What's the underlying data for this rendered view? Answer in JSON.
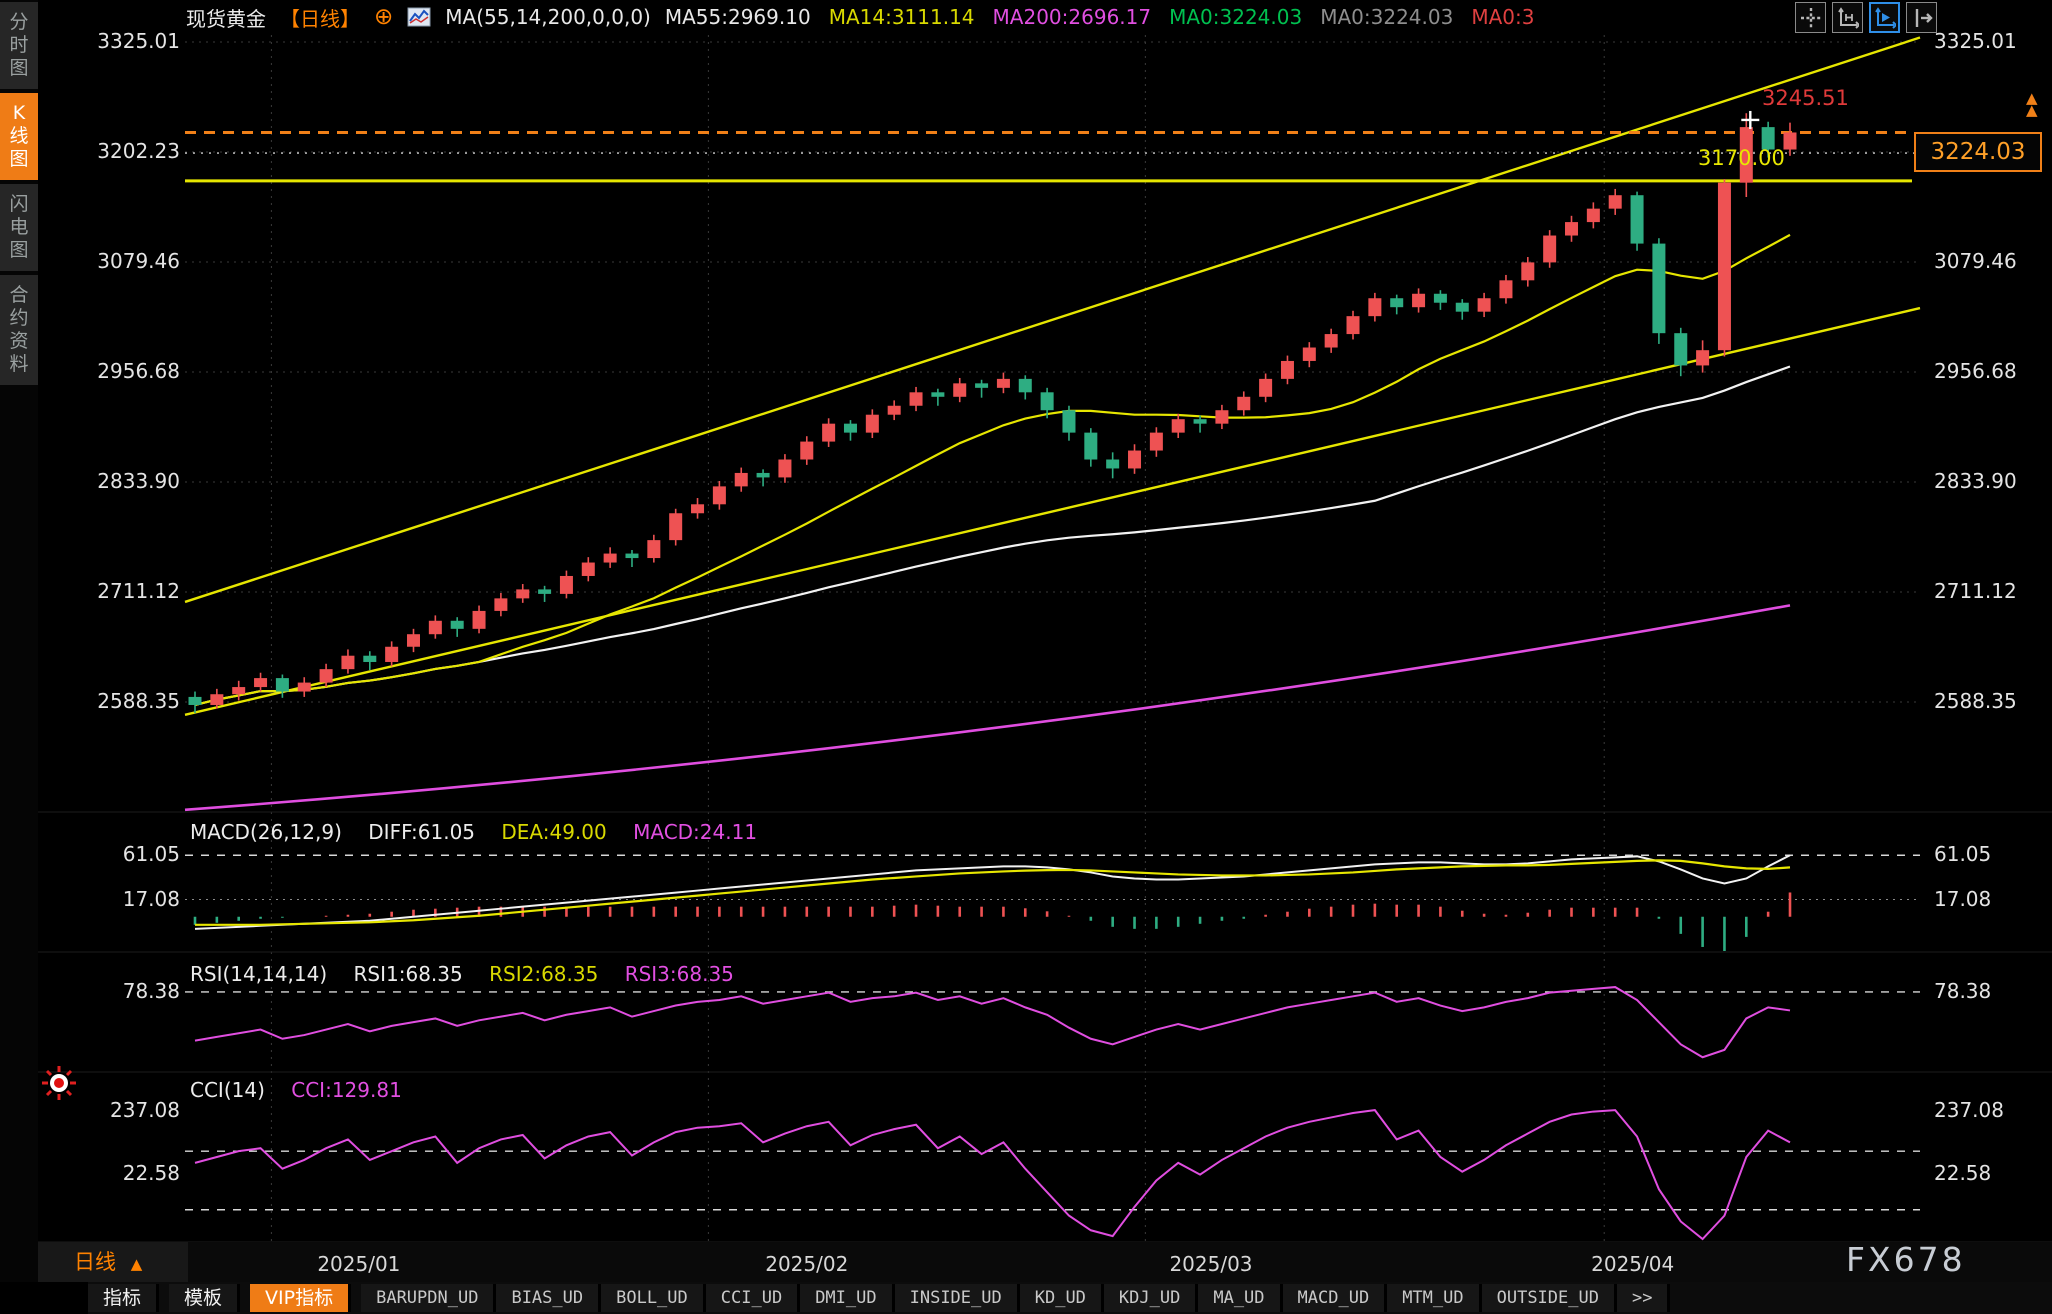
{
  "sidebar": {
    "items": [
      {
        "label": "分时图",
        "active": false
      },
      {
        "label": "K线图",
        "active": true
      },
      {
        "label": "闪电图",
        "active": false
      },
      {
        "label": "合约资料",
        "active": false
      }
    ]
  },
  "header": {
    "symbol": "现货黄金",
    "period": "【日线】",
    "ma_settings": "MA(55,14,200,0,0,0)",
    "ma_values": [
      {
        "text": "MA55:2969.10",
        "color": "#e8e8e8"
      },
      {
        "text": "MA14:3111.14",
        "color": "#d9d900"
      },
      {
        "text": "MA200:2696.17",
        "color": "#e14fe1"
      },
      {
        "text": "MA0:3224.03",
        "color": "#00c050"
      },
      {
        "text": "MA0:3224.03",
        "color": "#8e8e8e"
      },
      {
        "text": "MA0:3",
        "color": "#e04040"
      }
    ]
  },
  "pane_headers": {
    "macd": {
      "title": "MACD(26,12,9)",
      "diff": "DIFF:61.05",
      "dea": "DEA:49.00",
      "macd": "MACD:24.11"
    },
    "rsi": {
      "title": "RSI(14,14,14)",
      "rsi1": "RSI1:68.35",
      "rsi2": "RSI2:68.35",
      "rsi3": "RSI3:68.35"
    },
    "cci": {
      "title": "CCI(14)",
      "cci": "CCI:129.81"
    }
  },
  "annotations": {
    "high_label": "3245.51",
    "support_label": "3170.00",
    "last_price_label": "3224.03"
  },
  "time_axis": {
    "period_label": "日线"
  },
  "watermark": "FX678",
  "bottom_tabs": {
    "items": [
      {
        "label": "指标",
        "cn": true
      },
      {
        "label": "模板",
        "cn": true
      },
      {
        "label": "VIP指标",
        "cn": true,
        "selected": true
      },
      {
        "label": "BARUPDN_UD"
      },
      {
        "label": "BIAS_UD"
      },
      {
        "label": "BOLL_UD"
      },
      {
        "label": "CCI_UD"
      },
      {
        "label": "DMI_UD"
      },
      {
        "label": "INSIDE_UD"
      },
      {
        "label": "KD_UD"
      },
      {
        "label": "KDJ_UD"
      },
      {
        "label": "MA_UD"
      },
      {
        "label": "MACD_UD"
      },
      {
        "label": "MTM_UD"
      },
      {
        "label": "OUTSIDE_UD"
      },
      {
        "label": ">>"
      }
    ]
  },
  "colors": {
    "up": "#ee5253",
    "down": "#2ead82",
    "yellow": "#e6e600",
    "magenta": "#e04ee0",
    "white_line": "#f2f2f2",
    "accent_orange": "#ff8200",
    "box_orange": "#f08018",
    "grid": "#3a3a3a"
  },
  "chart_data": [
    {
      "type": "candlestick",
      "title": "现货黄金 日线 (Spot Gold, daily)",
      "ylim": [
        2465,
        3333
      ],
      "axis_ticks": [
        3325.01,
        3202.23,
        3079.46,
        2956.68,
        2833.9,
        2711.12,
        2588.35
      ],
      "months": [
        {
          "label": "2025/01",
          "start": 4,
          "label_at": 7.5
        },
        {
          "label": "2025/02",
          "start": 24,
          "label_at": 28
        },
        {
          "label": "2025/03",
          "start": 44,
          "label_at": 46.5
        },
        {
          "label": "2025/04",
          "start": 65,
          "label_at": 65.8
        }
      ],
      "candles": [
        [
          2594,
          2600,
          2576,
          2585
        ],
        [
          2585,
          2603,
          2581,
          2597
        ],
        [
          2597,
          2612,
          2590,
          2605
        ],
        [
          2605,
          2621,
          2600,
          2615
        ],
        [
          2615,
          2619,
          2593,
          2600
        ],
        [
          2600,
          2616,
          2594,
          2610
        ],
        [
          2610,
          2631,
          2605,
          2625
        ],
        [
          2625,
          2647,
          2620,
          2640
        ],
        [
          2640,
          2645,
          2624,
          2633
        ],
        [
          2633,
          2656,
          2628,
          2650
        ],
        [
          2650,
          2670,
          2644,
          2664
        ],
        [
          2664,
          2685,
          2659,
          2679
        ],
        [
          2679,
          2683,
          2661,
          2670
        ],
        [
          2670,
          2696,
          2665,
          2690
        ],
        [
          2690,
          2710,
          2684,
          2704
        ],
        [
          2704,
          2720,
          2699,
          2714
        ],
        [
          2714,
          2718,
          2700,
          2709
        ],
        [
          2709,
          2735,
          2704,
          2729
        ],
        [
          2729,
          2750,
          2723,
          2744
        ],
        [
          2744,
          2761,
          2738,
          2754
        ],
        [
          2754,
          2758,
          2739,
          2749
        ],
        [
          2749,
          2775,
          2744,
          2769
        ],
        [
          2769,
          2804,
          2763,
          2799
        ],
        [
          2799,
          2816,
          2793,
          2809
        ],
        [
          2809,
          2835,
          2803,
          2829
        ],
        [
          2829,
          2850,
          2823,
          2844
        ],
        [
          2844,
          2848,
          2829,
          2839
        ],
        [
          2839,
          2865,
          2833,
          2859
        ],
        [
          2859,
          2885,
          2853,
          2879
        ],
        [
          2879,
          2905,
          2873,
          2899
        ],
        [
          2899,
          2903,
          2880,
          2889
        ],
        [
          2889,
          2915,
          2883,
          2909
        ],
        [
          2909,
          2925,
          2903,
          2919
        ],
        [
          2919,
          2940,
          2913,
          2934
        ],
        [
          2934,
          2938,
          2919,
          2929
        ],
        [
          2929,
          2950,
          2923,
          2944
        ],
        [
          2944,
          2948,
          2928,
          2939
        ],
        [
          2939,
          2956,
          2933,
          2949
        ],
        [
          2949,
          2953,
          2926,
          2934
        ],
        [
          2934,
          2939,
          2905,
          2914
        ],
        [
          2914,
          2919,
          2880,
          2889
        ],
        [
          2889,
          2894,
          2851,
          2859
        ],
        [
          2859,
          2867,
          2838,
          2849
        ],
        [
          2849,
          2876,
          2843,
          2869
        ],
        [
          2869,
          2895,
          2862,
          2889
        ],
        [
          2889,
          2910,
          2883,
          2904
        ],
        [
          2904,
          2908,
          2889,
          2899
        ],
        [
          2899,
          2920,
          2893,
          2914
        ],
        [
          2914,
          2935,
          2908,
          2929
        ],
        [
          2929,
          2955,
          2923,
          2949
        ],
        [
          2949,
          2975,
          2943,
          2969
        ],
        [
          2969,
          2990,
          2962,
          2984
        ],
        [
          2984,
          3005,
          2978,
          2999
        ],
        [
          2999,
          3025,
          2993,
          3019
        ],
        [
          3019,
          3045,
          3013,
          3039
        ],
        [
          3039,
          3043,
          3021,
          3029
        ],
        [
          3029,
          3050,
          3023,
          3044
        ],
        [
          3044,
          3048,
          3026,
          3034
        ],
        [
          3034,
          3038,
          3015,
          3024
        ],
        [
          3024,
          3045,
          3018,
          3039
        ],
        [
          3039,
          3065,
          3033,
          3059
        ],
        [
          3059,
          3085,
          3052,
          3079
        ],
        [
          3079,
          3115,
          3073,
          3109
        ],
        [
          3109,
          3131,
          3102,
          3124
        ],
        [
          3124,
          3146,
          3117,
          3139
        ],
        [
          3139,
          3161,
          3132,
          3154
        ],
        [
          3154,
          3158,
          3092,
          3100
        ],
        [
          3100,
          3106,
          2988,
          3000
        ],
        [
          3000,
          3006,
          2952,
          2964
        ],
        [
          2964,
          2992,
          2956,
          2981
        ],
        [
          2981,
          3172,
          2974,
          3168
        ],
        [
          3168,
          3245.51,
          3152,
          3230
        ],
        [
          3230,
          3236,
          3196,
          3205
        ],
        [
          3205,
          3235,
          3198,
          3224.03
        ]
      ],
      "overlays": {
        "ma55_end": 2969.1,
        "ma14_end": 3111.14,
        "ma200": {
          "start_price": 2468,
          "end_price": 2696.17
        },
        "channel_upper": {
          "start_price": 2700,
          "end_price": 3330
        },
        "channel_lower": {
          "start_price": 2574,
          "end_price": 3028
        },
        "hline_solid_yellow": 3170.0,
        "hline_dashed_orange": 3224.03,
        "hline_dotted_white": 3201.0,
        "high_annotation": {
          "text": "3245.51",
          "price": 3245.51,
          "index": 71
        },
        "cross_marker": {
          "index": 71,
          "price": 3238
        },
        "last_close": 3224.03
      }
    },
    {
      "type": "macd",
      "params": "MACD(26,12,9)",
      "ylim": [
        -35,
        104
      ],
      "axis_ticks": [
        61.05,
        17.08
      ],
      "diff": [
        -12,
        -11,
        -10,
        -9,
        -8,
        -7,
        -6,
        -5,
        -4,
        -2,
        0,
        2,
        4,
        6,
        8,
        10,
        12,
        14,
        16,
        18,
        20,
        22,
        24,
        26,
        28,
        30,
        32,
        34,
        36,
        38,
        40,
        42,
        44,
        46,
        47,
        48,
        49,
        50,
        50,
        49,
        47,
        44,
        40,
        38,
        37,
        37,
        38,
        39,
        40,
        42,
        44,
        46,
        48,
        50,
        52,
        53,
        54,
        54,
        53,
        52,
        52,
        53,
        55,
        57,
        58,
        59,
        60,
        55,
        47,
        38,
        33,
        38,
        50,
        61.05
      ],
      "dea": [
        -8,
        -8,
        -8,
        -8,
        -7.5,
        -7,
        -6.5,
        -6,
        -5.5,
        -4.5,
        -3.5,
        -2,
        -0.5,
        1,
        3,
        5,
        7,
        9,
        11,
        13,
        15,
        17,
        19,
        21,
        23,
        25,
        27,
        29,
        31,
        33,
        35,
        37,
        38.5,
        40,
        41.5,
        43,
        44,
        45,
        45.8,
        46.3,
        46.5,
        46,
        45,
        44,
        43,
        42,
        41.5,
        41,
        41,
        41,
        41.5,
        42,
        43,
        44,
        45.5,
        47,
        48,
        49,
        50,
        50.5,
        51,
        51,
        51.5,
        52.5,
        53.5,
        54.5,
        55.5,
        56,
        55.5,
        53,
        50,
        48,
        47.5,
        49
      ],
      "hist_formula": "2*(diff-dea)",
      "last": {
        "diff": 61.05,
        "dea": 49.0,
        "macd": 24.11
      }
    },
    {
      "type": "rsi",
      "params": "RSI(14,14,14)",
      "ylim": [
        35,
        100
      ],
      "axis_ticks": [
        78.38
      ],
      "rsi": [
        52,
        54,
        56,
        58,
        53,
        55,
        58,
        61,
        57,
        60,
        62,
        64,
        60,
        63,
        65,
        67,
        63,
        66,
        68,
        70,
        65,
        68,
        71,
        73,
        74,
        76,
        72,
        74,
        76,
        78,
        73,
        75,
        76,
        78,
        74,
        76,
        72,
        75,
        70,
        66,
        59,
        53,
        50,
        54,
        58,
        61,
        58,
        61,
        64,
        67,
        70,
        72,
        74,
        76,
        78,
        73,
        75,
        71,
        68,
        70,
        73,
        75,
        78,
        79,
        80,
        81,
        74,
        62,
        50,
        43,
        47,
        64,
        70,
        68.35
      ],
      "last": {
        "rsi1": 68.35,
        "rsi2": 68.35,
        "rsi3": 68.35
      }
    },
    {
      "type": "cci",
      "params": "CCI(14)",
      "ylim": [
        -210,
        370
      ],
      "axis_ticks": [
        237.08,
        22.58
      ],
      "bands": [
        100,
        -100
      ],
      "cci": [
        60,
        80,
        100,
        110,
        40,
        70,
        110,
        140,
        70,
        100,
        130,
        150,
        60,
        110,
        140,
        155,
        75,
        120,
        150,
        165,
        85,
        130,
        165,
        180,
        185,
        195,
        130,
        160,
        185,
        200,
        120,
        155,
        175,
        190,
        110,
        150,
        90,
        130,
        40,
        -40,
        -120,
        -170,
        -190,
        -90,
        0,
        60,
        20,
        70,
        110,
        150,
        180,
        200,
        215,
        230,
        240,
        140,
        170,
        80,
        30,
        70,
        120,
        160,
        200,
        225,
        235,
        240,
        150,
        -30,
        -140,
        -200,
        -120,
        80,
        170,
        129.81
      ],
      "last": {
        "cci": 129.81
      }
    }
  ]
}
